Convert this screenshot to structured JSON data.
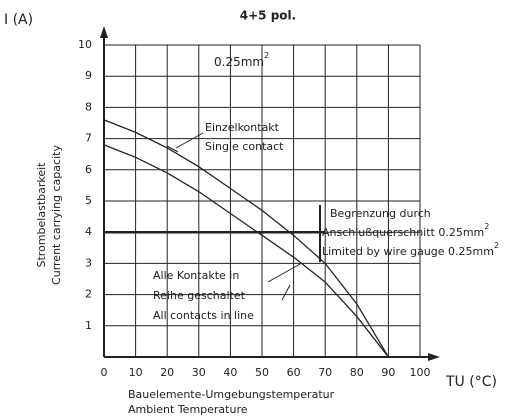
{
  "chart_data": {
    "type": "line",
    "title": "4+5 pol.",
    "ylabel": "I (A)",
    "ylabel_de": "Strombelastbarkeit",
    "ylabel_en": "Current carrying capacity",
    "xlabel": "TU (°C)",
    "xlabel_de": "Bauelemente-Umgebungstemperatur",
    "xlabel_en": "Ambient Temperature",
    "x": [
      0,
      10,
      20,
      30,
      40,
      50,
      60,
      70,
      80,
      90
    ],
    "series": [
      {
        "values": [
          7.6,
          7.2,
          6.7,
          6.1,
          5.4,
          4.7,
          3.9,
          3.0,
          1.7,
          0
        ],
        "color": "#222"
      },
      {
        "values": [
          6.8,
          6.4,
          5.9,
          5.3,
          4.6,
          3.9,
          3.2,
          2.4,
          1.3,
          0
        ],
        "color": "#222"
      }
    ],
    "limit": {
      "y": 4,
      "x": [
        0,
        70
      ]
    },
    "annotations": [
      {
        "text": "0.25mm",
        "sup": "2"
      },
      {
        "text": "Einzelkontakt"
      },
      {
        "text": "Single contact"
      },
      {
        "text": "Begrenzung durch"
      },
      {
        "text": "Anschlußquerschnitt 0.25mm",
        "sup": "2"
      },
      {
        "text": "Limited by wire gauge 0.25mm",
        "sup": "2"
      },
      {
        "text": "Alle Kontakte in"
      },
      {
        "text": "Reihe geschaltet"
      },
      {
        "text": "All contacts in line"
      }
    ],
    "xlim": [
      0,
      100
    ],
    "ylim": [
      0,
      10
    ],
    "xticks": [
      0,
      10,
      20,
      30,
      40,
      50,
      60,
      70,
      80,
      90,
      100
    ],
    "yticks": [
      1,
      2,
      3,
      4,
      5,
      6,
      7,
      8,
      9,
      10
    ],
    "grid": true
  }
}
